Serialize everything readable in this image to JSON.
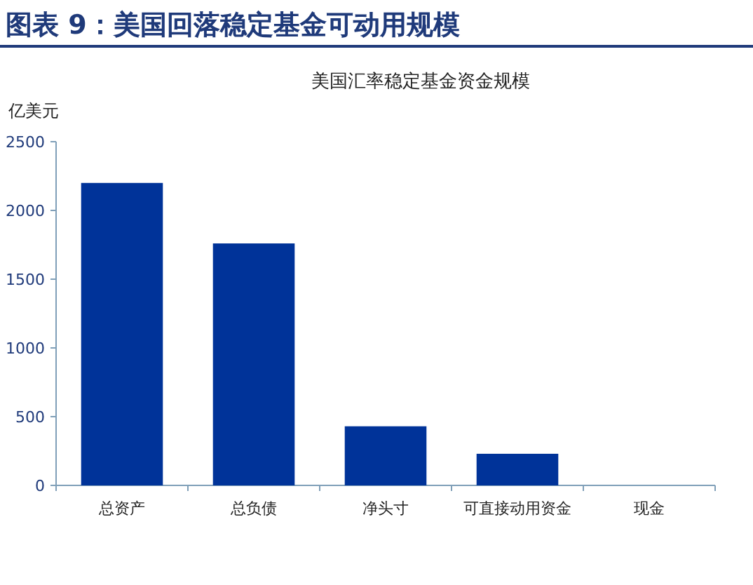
{
  "chart_data": {
    "type": "bar",
    "title": "图表 9：美国回落稳定基金可动用规模",
    "subtitle": "美国汇率稳定基金资金规模",
    "ylabel": "亿美元",
    "categories": [
      "总资产",
      "总负债",
      "净头寸",
      "可直接动用资金",
      "现金"
    ],
    "values": [
      2200,
      1760,
      430,
      230,
      0
    ],
    "color": "#003399",
    "ylim": [
      0,
      2500
    ],
    "yticks": [
      0,
      500,
      1000,
      1500,
      2000,
      2500
    ]
  }
}
